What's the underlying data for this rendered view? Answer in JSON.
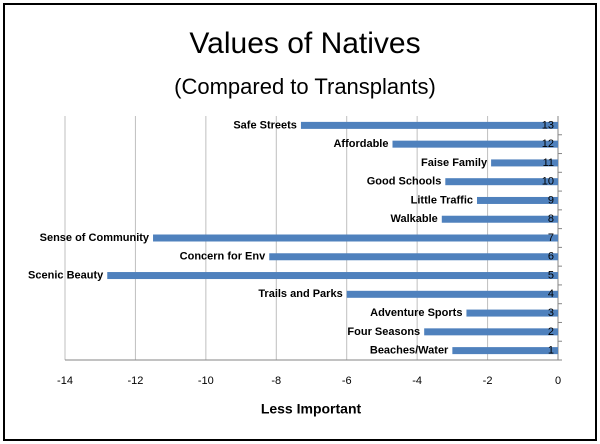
{
  "chart_data": {
    "type": "hbar",
    "title": "Values of Natives",
    "subtitle": "(Compared to Transplants)",
    "x_label": "Less Important",
    "categories": [
      "1",
      "2",
      "3",
      "4",
      "5",
      "6",
      "7",
      "8",
      "9",
      "10",
      "11",
      "12",
      "13"
    ],
    "labels": [
      "Beaches/Water",
      "Four Seasons",
      "Adventure Sports",
      "Trails and Parks",
      "Scenic Beauty",
      "Concern for Env",
      "Sense of Community",
      "Walkable",
      "Little Traffic",
      "Good Schools",
      "Faise Family",
      "Affordable",
      "Safe Streets"
    ],
    "values": [
      -3.0,
      -3.8,
      -2.6,
      -6.0,
      -12.8,
      -8.2,
      -11.5,
      -3.3,
      -2.3,
      -3.2,
      -1.9,
      -4.7,
      -7.3
    ],
    "color": "#4f81bd",
    "xlim": [
      -14,
      0
    ],
    "xticks": [
      -14,
      -12,
      -10,
      -8,
      -6,
      -4,
      -2,
      0
    ],
    "grid": true
  }
}
